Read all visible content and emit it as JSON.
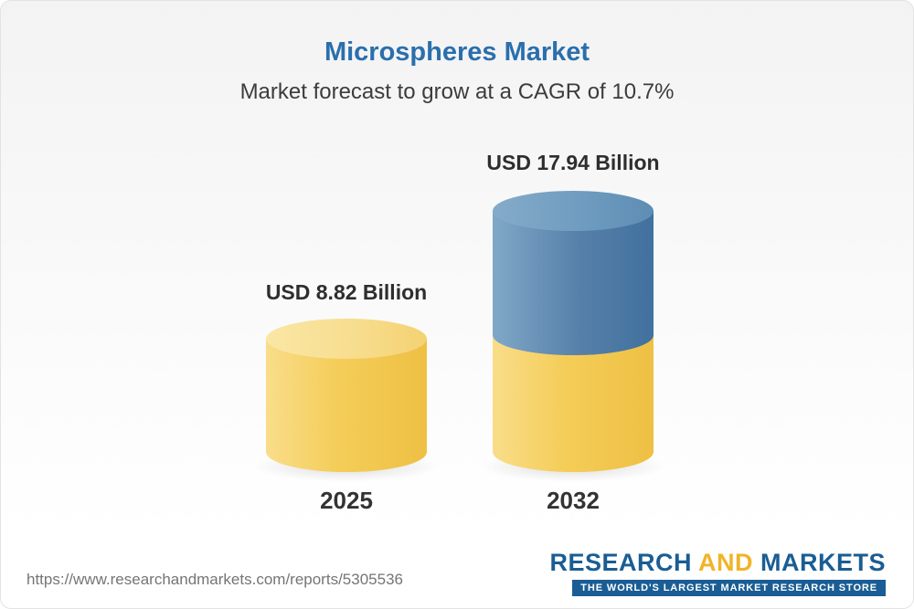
{
  "header": {
    "title": "Microspheres Market",
    "subtitle": "Market forecast to grow at a CAGR of 10.7%"
  },
  "chart_data": {
    "type": "bar",
    "title": "Microspheres Market",
    "subtitle": "Market forecast to grow at a CAGR of 10.7%",
    "cagr": "10.7%",
    "unit": "USD Billion",
    "categories": [
      "2025",
      "2032"
    ],
    "values": [
      8.82,
      17.94
    ],
    "value_labels": [
      "USD 8.82 Billion",
      "USD 17.94 Billion"
    ],
    "xlabel": "",
    "ylabel": "",
    "ylim": [
      0,
      20
    ],
    "grid": false,
    "legend_position": "none",
    "colors": {
      "bar_2025": "#f2c94c",
      "bar_2032_bottom_segment": "#f2c94c",
      "bar_2032_top_segment": "#4f7ea8",
      "title_text": "#2a6fad"
    }
  },
  "bars": [
    {
      "year": "2025",
      "label": "USD 8.82 Billion"
    },
    {
      "year": "2032",
      "label": "USD 17.94 Billion"
    }
  ],
  "footer": {
    "url": "https://www.researchandmarkets.com/reports/5305536",
    "logo": {
      "research": "RESEARCH",
      "and": "AND",
      "markets": "MARKETS",
      "tagline": "THE WORLD'S LARGEST MARKET RESEARCH STORE"
    }
  }
}
